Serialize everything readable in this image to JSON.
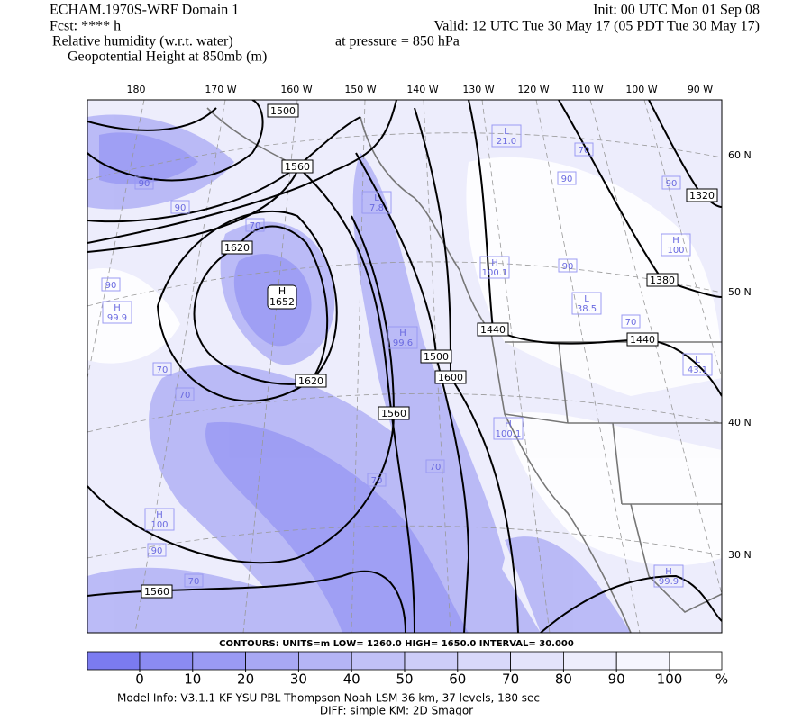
{
  "header": {
    "left": [
      "ECHAM.1970S-WRF Domain 1",
      "Fcst: **** h",
      "Relative humidity (w.r.t. water)",
      "Geopotential Height at 850mb (m)"
    ],
    "right": [
      "Init: 00 UTC Mon 01 Sep 08",
      "Valid: 12 UTC Tue 30 May 17 (05 PDT Tue 30 May 17)"
    ],
    "pressure": "at pressure =  850 hPa"
  },
  "map": {
    "lon_labels": [
      "180",
      "170 W",
      "160 W",
      "150 W",
      "140 W",
      "130 W",
      "120 W",
      "110 W",
      "100 W",
      "90 W"
    ],
    "lat_labels": [
      "60 N",
      "50 N",
      "40 N",
      "30 N"
    ],
    "contour_labels": [
      "1500",
      "1560",
      "1620",
      "1620",
      "1560",
      "1500",
      "1600",
      "1440",
      "1440",
      "1380",
      "1320",
      "1560"
    ],
    "extrema": [
      {
        "kind": "H",
        "value": "1652"
      }
    ],
    "rh_extrema": [
      {
        "kind": "H",
        "value": "100.1"
      },
      {
        "kind": "L",
        "value": "38.5"
      },
      {
        "kind": "H",
        "value": "100.1"
      },
      {
        "kind": "H",
        "value": "99.9"
      },
      {
        "kind": "H",
        "value": "100"
      },
      {
        "kind": "H",
        "value": "99.9"
      },
      {
        "kind": "H",
        "value": "100"
      },
      {
        "kind": "L",
        "value": "21.0"
      },
      {
        "kind": "L",
        "value": "7.8"
      },
      {
        "kind": "L",
        "value": "43.1"
      },
      {
        "kind": "H",
        "value": "99.6"
      }
    ],
    "rh_labels": [
      "90",
      "90",
      "70",
      "90",
      "70",
      "70",
      "90",
      "70",
      "70",
      "90",
      "90",
      "70",
      "70",
      "90",
      "70"
    ]
  },
  "contour_info": "CONTOURS:  UNITS=m  LOW=  1260.0  HIGH=  1650.0  INTERVAL=  30.000",
  "colorbar": {
    "ticks": [
      0,
      10,
      20,
      30,
      40,
      50,
      60,
      70,
      80,
      90,
      100
    ],
    "unit": "%",
    "colors": [
      "#7b7bf0",
      "#8b8bf2",
      "#9a9af3",
      "#a8a8f4",
      "#b5b5f6",
      "#c1c1f7",
      "#cdcdf8",
      "#d8d8fa",
      "#e3e3fb",
      "#ededfc",
      "#f6f6fe",
      "#ffffff"
    ]
  },
  "footer": [
    "Model Info: V3.1.1    KF       YSU PBL  Thompson     Noah LSM  36 km,    37 levels,  180 sec",
    "DIFF: simple KM: 2D Smagor"
  ]
}
